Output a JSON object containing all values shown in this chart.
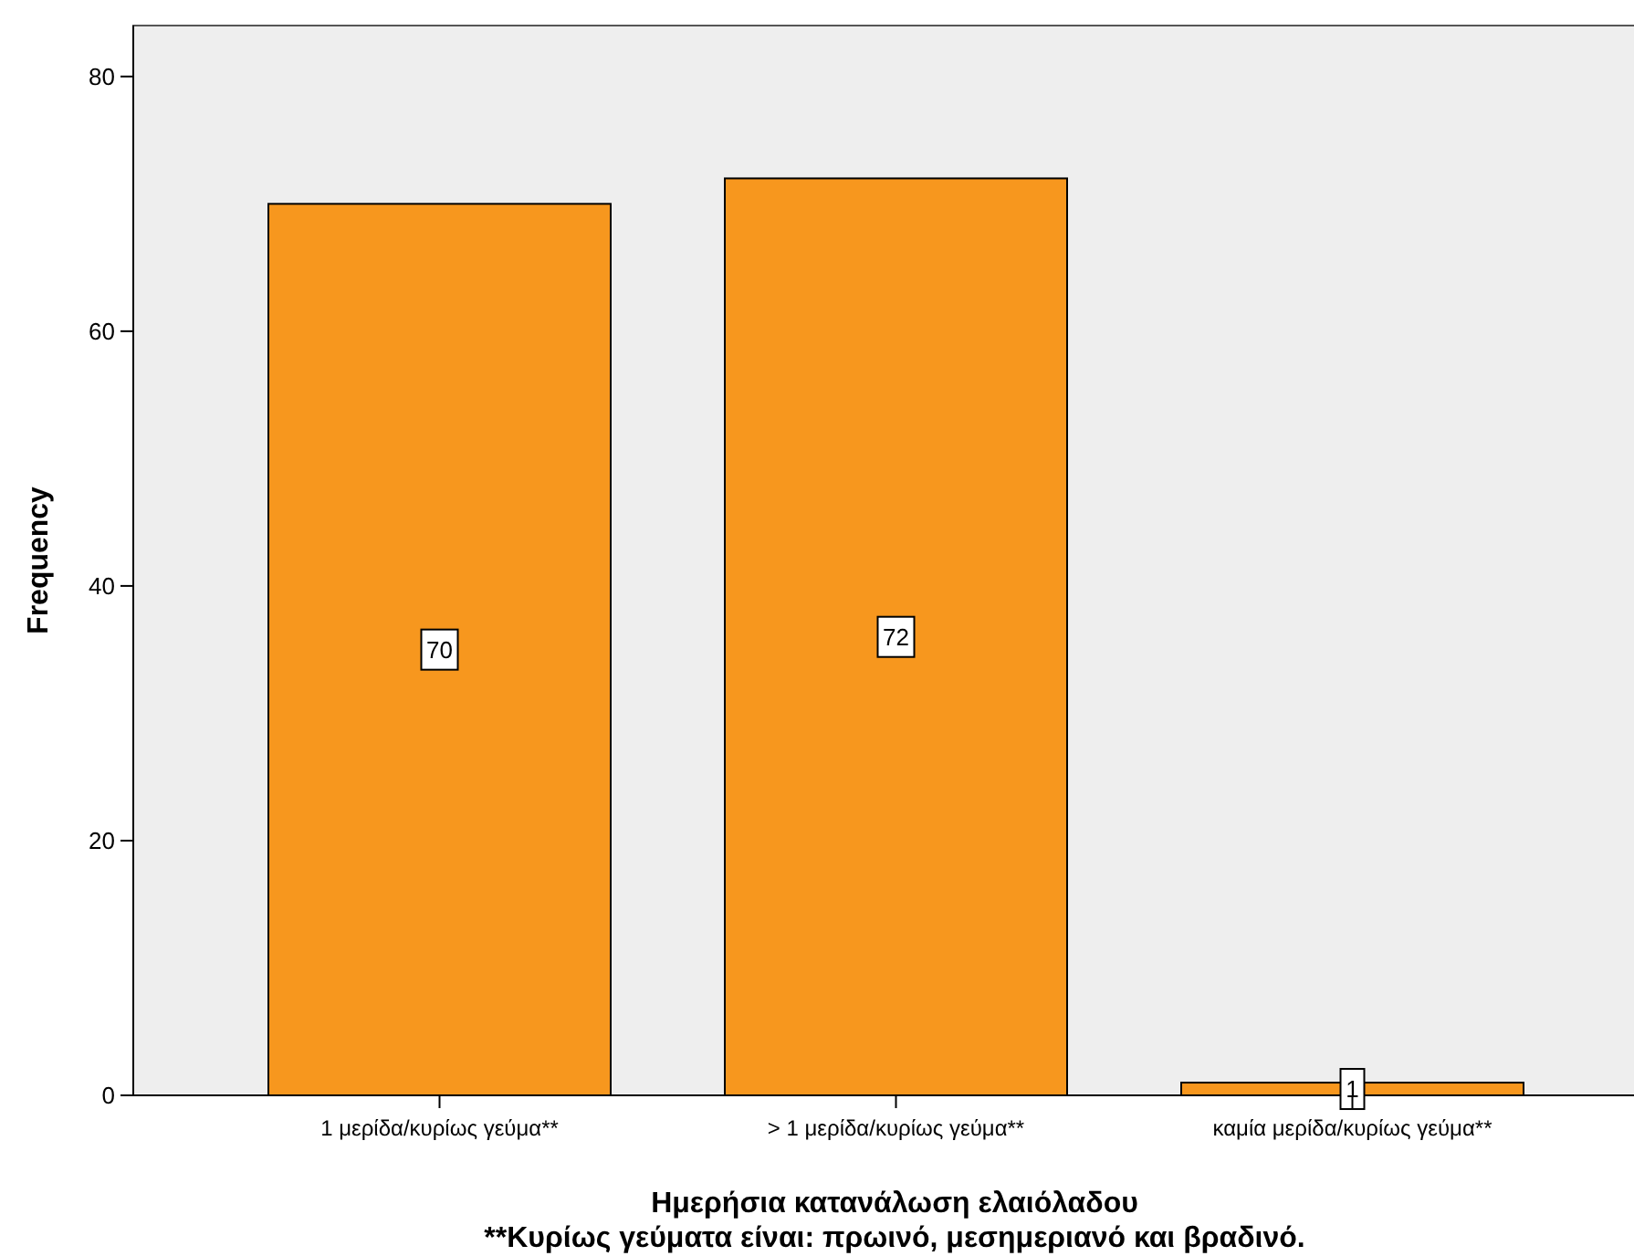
{
  "chart_data": {
    "type": "bar",
    "xlabel": "Ημερήσια κατανάλωση ελαιόλαδου",
    "ylabel": "Frequency",
    "annotations": [
      "**Κυρίως γεύματα είναι: πρωινό, μεσημεριανό και βραδινό."
    ],
    "categories": [
      "1 μερίδα/κυρίως γεύμα**",
      "> 1 μερίδα/κυρίως γεύμα**",
      "καμία μερίδα/κυρίως γεύμα**"
    ],
    "values": [
      70,
      72,
      1
    ],
    "color": "#f7971e",
    "ylim": [
      0,
      84
    ],
    "yticks": [
      0,
      20,
      40,
      60,
      80
    ],
    "data_labels": true,
    "grid": false
  }
}
